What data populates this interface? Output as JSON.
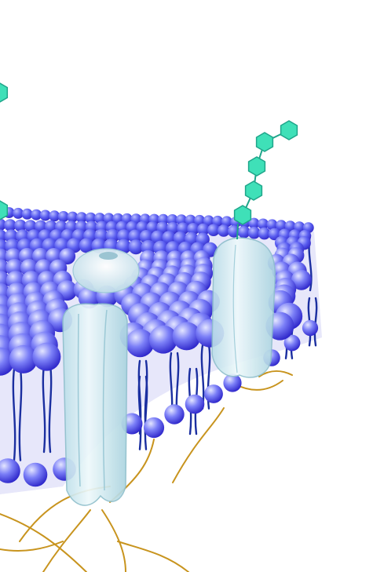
{
  "scene": {
    "subject": "cell-membrane-illustration",
    "background_color": "#ffffff",
    "head_color_light": "#c8ccff",
    "head_color_mid": "#6b6ff5",
    "head_color_dark": "#2a22c8",
    "tail_color": "#1b2fa0",
    "sugar_color": "#3fe0b8",
    "sugar_edge_color": "#1fa58a",
    "protein_color": "#d9f0f5",
    "protein_edge_color": "#8fbfcc",
    "filament_color": "#c8941e"
  }
}
